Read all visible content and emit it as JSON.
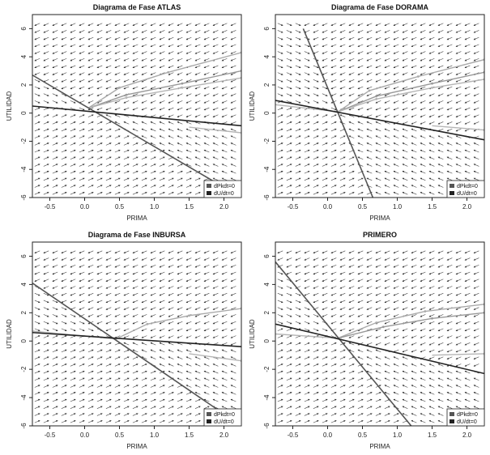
{
  "chart_data": [
    {
      "type": "phase-diagram",
      "title": "Diagrama de Fase ATLAS",
      "xlabel": "PRIMA",
      "ylabel": "UTILIDAD",
      "xlim": [
        -0.75,
        2.25
      ],
      "ylim": [
        -6,
        7
      ],
      "xticks": [
        -0.5,
        0.0,
        0.5,
        1.0,
        1.5,
        2.0
      ],
      "xtick_labels": [
        "-0.5",
        "0.0",
        "0.5",
        "1.0",
        "1.5",
        "2.0"
      ],
      "yticks": [
        -6,
        -4,
        -2,
        0,
        2,
        4,
        6
      ],
      "ytick_labels": [
        "-6",
        "-4",
        "-2",
        "0",
        "2",
        "4",
        "6"
      ],
      "grid": true,
      "legend_position": "bottom-right",
      "legend": [
        "dPkdt=0",
        "dU/dt=0"
      ],
      "nullclines": [
        {
          "name": "dPkdt=0",
          "color": "#555555",
          "points": [
            [
              -0.75,
              2.7
            ],
            [
              2.25,
              -6.0
            ]
          ]
        },
        {
          "name": "dU/dt=0",
          "color": "#222222",
          "points": [
            [
              -0.75,
              0.5
            ],
            [
              2.25,
              -0.9
            ]
          ]
        }
      ],
      "trajectories": [
        {
          "color": "#aaaaaa",
          "points": [
            [
              0.05,
              0.35
            ],
            [
              0.5,
              1.8
            ],
            [
              1.2,
              2.9
            ],
            [
              2.25,
              4.3
            ]
          ]
        },
        {
          "color": "#999999",
          "points": [
            [
              0.05,
              0.35
            ],
            [
              0.6,
              1.3
            ],
            [
              1.4,
              2.1
            ],
            [
              2.25,
              3.0
            ]
          ]
        },
        {
          "color": "#b5b5b5",
          "points": [
            [
              0.05,
              0.35
            ],
            [
              0.6,
              1.1
            ],
            [
              1.4,
              1.8
            ],
            [
              2.25,
              2.5
            ]
          ]
        },
        {
          "color": "#b5b5b5",
          "points": [
            [
              1.5,
              -1.0
            ],
            [
              2.25,
              -1.4
            ]
          ]
        }
      ]
    },
    {
      "type": "phase-diagram",
      "title": "Diagrama de Fase DORAMA",
      "xlabel": "PRIMA",
      "ylabel": "UTILIDAD",
      "xlim": [
        -0.75,
        2.25
      ],
      "ylim": [
        -6,
        7
      ],
      "xticks": [
        -0.5,
        0.0,
        0.5,
        1.0,
        1.5,
        2.0
      ],
      "xtick_labels": [
        "-0.5",
        "0.0",
        "0.5",
        "1.0",
        "1.5",
        "2.0"
      ],
      "yticks": [
        -6,
        -4,
        -2,
        0,
        2,
        4,
        6
      ],
      "ytick_labels": [
        "-6",
        "-4",
        "-2",
        "0",
        "2",
        "4",
        "6"
      ],
      "grid": true,
      "legend_position": "bottom-right",
      "legend": [
        "dPkdt=0",
        "dU/dt=0"
      ],
      "nullclines": [
        {
          "name": "dPkdt=0",
          "color": "#555555",
          "points": [
            [
              -0.35,
              6.0
            ],
            [
              0.65,
              -6.0
            ]
          ]
        },
        {
          "name": "dU/dt=0",
          "color": "#222222",
          "points": [
            [
              -0.75,
              0.9
            ],
            [
              2.25,
              -1.9
            ]
          ]
        }
      ],
      "trajectories": [
        {
          "color": "#aaaaaa",
          "points": [
            [
              0.15,
              0.1
            ],
            [
              0.6,
              1.6
            ],
            [
              1.3,
              2.6
            ],
            [
              2.25,
              3.8
            ]
          ]
        },
        {
          "color": "#999999",
          "points": [
            [
              0.15,
              0.1
            ],
            [
              0.7,
              1.2
            ],
            [
              1.5,
              2.1
            ],
            [
              2.25,
              2.9
            ]
          ]
        },
        {
          "color": "#b5b5b5",
          "points": [
            [
              0.15,
              0.1
            ],
            [
              0.7,
              1.0
            ],
            [
              1.5,
              1.8
            ],
            [
              2.25,
              2.4
            ]
          ]
        },
        {
          "color": "#b5b5b5",
          "points": [
            [
              -0.75,
              0.6
            ],
            [
              0.15,
              0.1
            ]
          ]
        },
        {
          "color": "#b5b5b5",
          "points": [
            [
              1.5,
              -0.9
            ],
            [
              2.25,
              -1.2
            ]
          ]
        }
      ]
    },
    {
      "type": "phase-diagram",
      "title": "Diagrama de Fase INBURSA",
      "xlabel": "PRIMA",
      "ylabel": "UTILIDAD",
      "xlim": [
        -0.75,
        2.25
      ],
      "ylim": [
        -6,
        7
      ],
      "xticks": [
        -0.5,
        0.0,
        0.5,
        1.0,
        1.5,
        2.0
      ],
      "xtick_labels": [
        "-0.5",
        "0.0",
        "0.5",
        "1.0",
        "1.5",
        "2.0"
      ],
      "yticks": [
        -6,
        -4,
        -2,
        0,
        2,
        4,
        6
      ],
      "ytick_labels": [
        "-6",
        "-4",
        "-2",
        "0",
        "2",
        "4",
        "6"
      ],
      "grid": true,
      "legend_position": "bottom-right",
      "legend": [
        "dPkdt=0",
        "dU/dt=0"
      ],
      "nullclines": [
        {
          "name": "dPkdt=0",
          "color": "#555555",
          "points": [
            [
              -0.75,
              4.1
            ],
            [
              2.25,
              -6.0
            ]
          ]
        },
        {
          "name": "dU/dt=0",
          "color": "#222222",
          "points": [
            [
              -0.75,
              0.6
            ],
            [
              2.25,
              -0.4
            ]
          ]
        }
      ],
      "trajectories": [
        {
          "color": "#aaaaaa",
          "points": [
            [
              0.45,
              0.15
            ],
            [
              0.9,
              1.2
            ],
            [
              1.5,
              1.8
            ],
            [
              2.25,
              2.3
            ]
          ]
        },
        {
          "color": "#b5b5b5",
          "points": [
            [
              -0.75,
              0.7
            ],
            [
              0.45,
              0.15
            ]
          ]
        },
        {
          "color": "#b5b5b5",
          "points": [
            [
              1.5,
              -0.9
            ],
            [
              2.25,
              -1.4
            ]
          ]
        }
      ]
    },
    {
      "type": "phase-diagram",
      "title": "PRIMERO",
      "xlabel": "PRIMA",
      "ylabel": "UTILIDAD",
      "xlim": [
        -0.75,
        2.25
      ],
      "ylim": [
        -6,
        7
      ],
      "xticks": [
        -0.5,
        0.0,
        0.5,
        1.0,
        1.5,
        2.0
      ],
      "xtick_labels": [
        "-0.5",
        "0.0",
        "0.5",
        "1.0",
        "1.5",
        "2.0"
      ],
      "yticks": [
        -6,
        -4,
        -2,
        0,
        2,
        4,
        6
      ],
      "ytick_labels": [
        "-6",
        "-4",
        "-2",
        "0",
        "2",
        "4",
        "6"
      ],
      "grid": true,
      "legend_position": "bottom-right",
      "legend": [
        "dPkdt=0",
        "dU/dt=0"
      ],
      "nullclines": [
        {
          "name": "dPkdt=0",
          "color": "#555555",
          "points": [
            [
              -0.75,
              5.6
            ],
            [
              1.2,
              -6.0
            ]
          ]
        },
        {
          "name": "dU/dt=0",
          "color": "#222222",
          "points": [
            [
              -0.75,
              1.2
            ],
            [
              2.25,
              -2.3
            ]
          ]
        }
      ],
      "trajectories": [
        {
          "color": "#aaaaaa",
          "points": [
            [
              0.15,
              0.2
            ],
            [
              0.7,
              1.3
            ],
            [
              1.4,
              2.1
            ],
            [
              2.25,
              2.6
            ]
          ]
        },
        {
          "color": "#999999",
          "points": [
            [
              0.15,
              0.2
            ],
            [
              0.8,
              1.0
            ],
            [
              1.5,
              1.6
            ],
            [
              2.25,
              2.0
            ]
          ]
        },
        {
          "color": "#b5b5b5",
          "points": [
            [
              -0.75,
              0.5
            ],
            [
              0.15,
              0.2
            ]
          ]
        },
        {
          "color": "#b5b5b5",
          "points": [
            [
              1.5,
              -1.0
            ],
            [
              2.25,
              -0.9
            ]
          ]
        }
      ]
    }
  ]
}
